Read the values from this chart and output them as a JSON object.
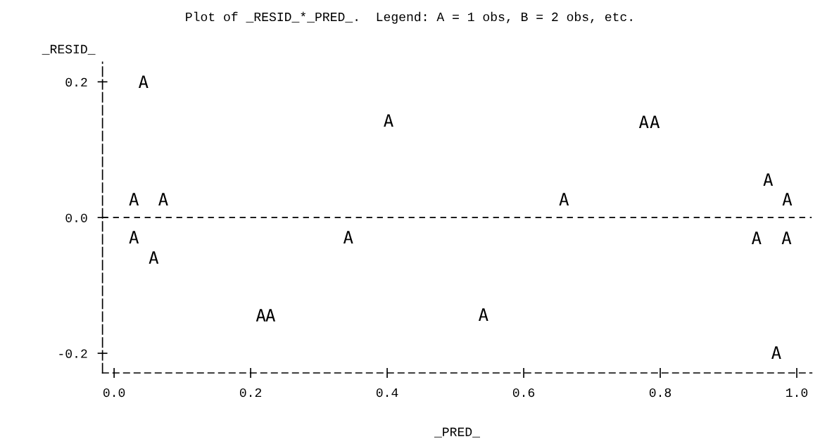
{
  "chart_data": {
    "type": "scatter",
    "title": "Plot of _RESID_*_PRED_.  Legend: A = 1 obs, B = 2 obs, etc.",
    "xlabel": "_PRED_",
    "ylabel": "_RESID_",
    "x": [
      0.043,
      0.402,
      0.029,
      0.072,
      0.029,
      0.343,
      0.058,
      0.215,
      0.229,
      0.776,
      0.792,
      0.958,
      0.659,
      0.986,
      0.941,
      0.985,
      0.541,
      0.97
    ],
    "series": [
      {
        "color": "#000000",
        "values": [
          0.2,
          0.143,
          0.027,
          0.027,
          -0.029,
          -0.029,
          -0.059,
          -0.144,
          -0.144,
          0.141,
          0.141,
          0.056,
          0.027,
          0.027,
          -0.03,
          -0.03,
          -0.143,
          -0.199
        ]
      }
    ],
    "xlim": [
      -0.017,
      1.022
    ],
    "ylim": [
      -0.229,
      0.229
    ],
    "xticks": [
      {
        "value": 0,
        "label": "0.0"
      },
      {
        "value": 0.2,
        "label": "0.2"
      },
      {
        "value": 0.4,
        "label": "0.4"
      },
      {
        "value": 0.6,
        "label": "0.6"
      },
      {
        "value": 0.8,
        "label": "0.8"
      },
      {
        "value": 1.0,
        "label": "1.0"
      }
    ],
    "yticks": [
      {
        "value": -0.2,
        "label": "-0.2"
      },
      {
        "value": 0,
        "label": "0.0"
      },
      {
        "value": 0.2,
        "label": "0.2"
      }
    ],
    "ref_lines": [
      {
        "axis": "y",
        "value": 0,
        "color": "#000000",
        "line_style": "dashed"
      }
    ],
    "grid": false,
    "legend": false
  }
}
